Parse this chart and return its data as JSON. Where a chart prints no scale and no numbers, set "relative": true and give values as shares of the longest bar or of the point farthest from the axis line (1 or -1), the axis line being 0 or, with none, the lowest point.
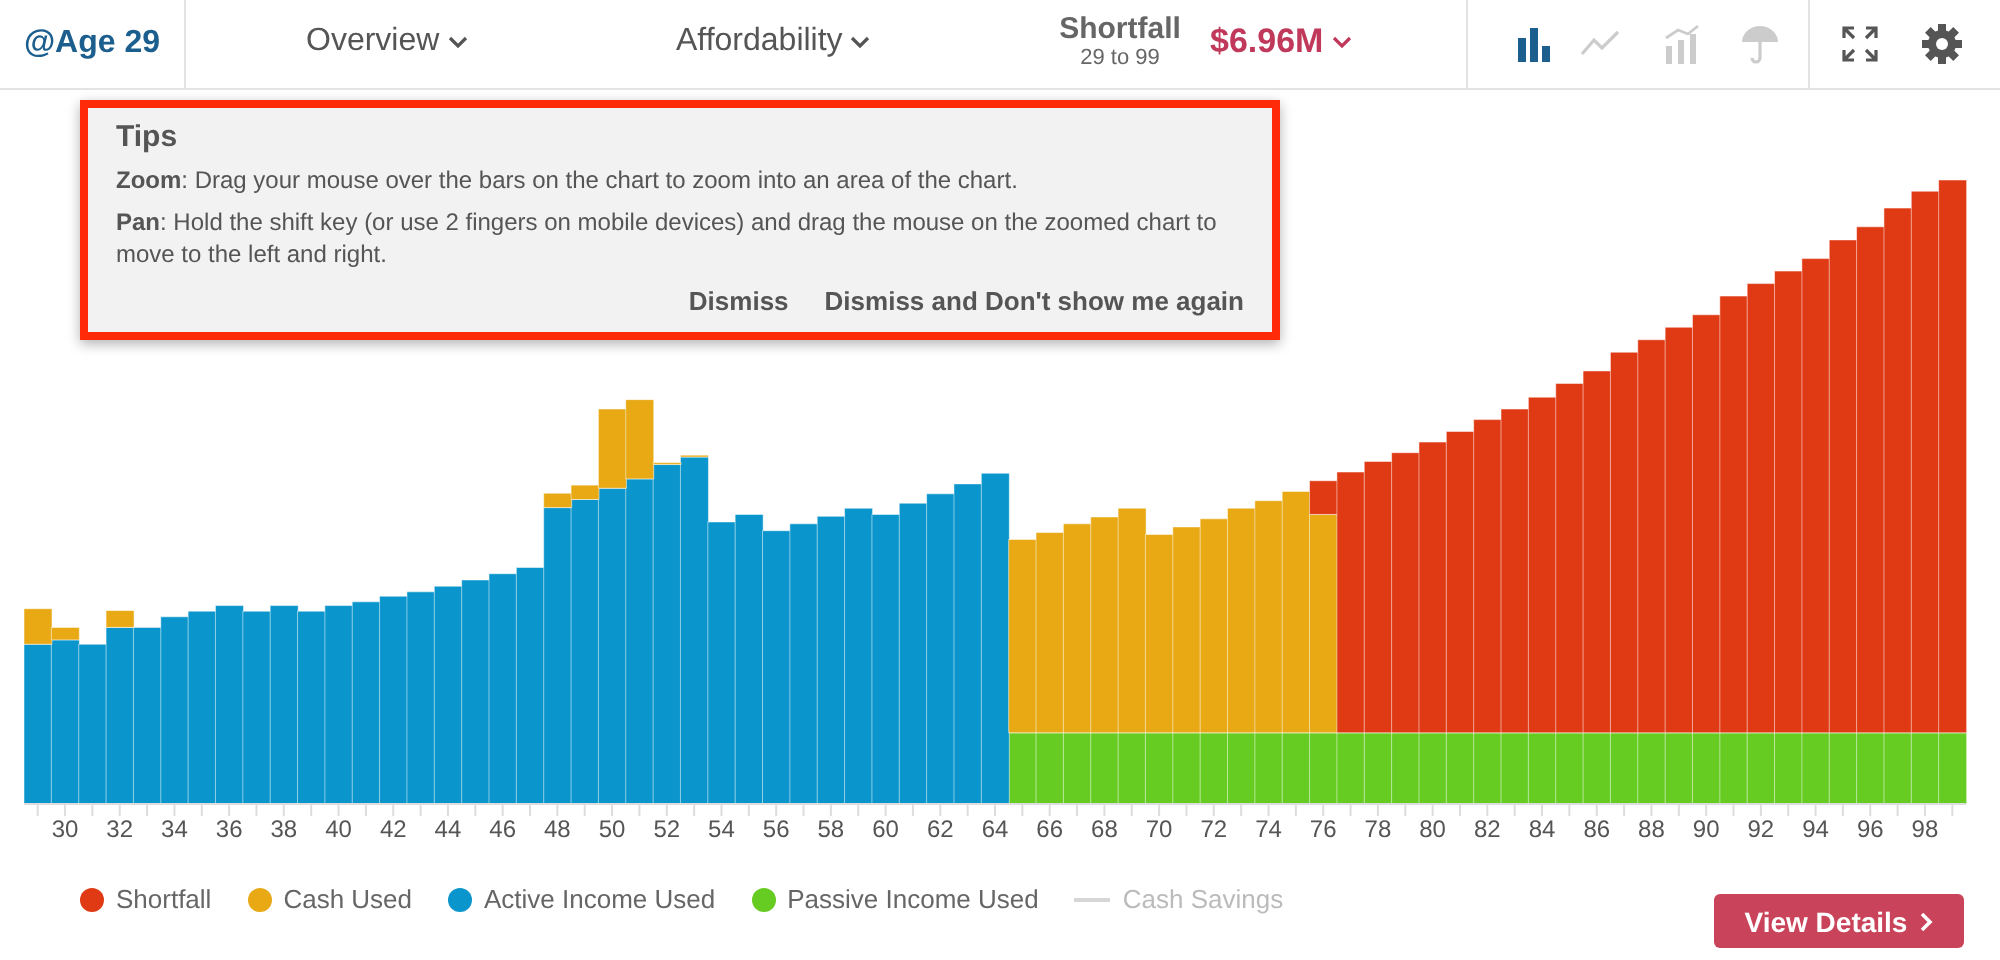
{
  "chart_data": {
    "type": "bar",
    "stacked": true,
    "relative": true,
    "legend": "bottom left",
    "categories": [
      null,
      "30",
      null,
      "32",
      null,
      "34",
      null,
      "36",
      null,
      "38",
      null,
      "40",
      null,
      "42",
      null,
      "44",
      null,
      "46",
      null,
      "48",
      null,
      "50",
      null,
      "52",
      null,
      "54",
      null,
      "56",
      null,
      "58",
      null,
      "60",
      null,
      "62",
      null,
      "64",
      null,
      "66",
      null,
      "68",
      null,
      "70",
      null,
      "72",
      null,
      "74",
      null,
      "76",
      null,
      "78",
      null,
      "80",
      null,
      "82",
      null,
      "84",
      null,
      "86",
      null,
      "88",
      null,
      "90",
      null,
      "92",
      null,
      "94",
      null,
      "96",
      null,
      "98",
      null
    ],
    "series": [
      {
        "name": "Passive Income Used",
        "color": "#66cc22",
        "values": [
          null,
          null,
          null,
          null,
          null,
          null,
          null,
          null,
          null,
          null,
          null,
          null,
          null,
          null,
          null,
          null,
          null,
          null,
          null,
          null,
          null,
          null,
          null,
          null,
          null,
          null,
          null,
          null,
          null,
          null,
          null,
          null,
          null,
          null,
          null,
          null,
          0.114,
          0.114,
          0.114,
          0.114,
          0.114,
          0.114,
          0.114,
          0.114,
          0.114,
          0.114,
          0.114,
          0.114,
          0.114,
          0.114,
          0.114,
          0.114,
          0.114,
          0.114,
          0.114,
          0.114,
          0.114,
          0.114,
          0.114,
          0.114,
          0.114,
          0.114,
          0.114,
          0.114,
          0.114,
          0.114,
          0.114,
          0.114,
          0.114,
          0.114,
          0.114
        ]
      },
      {
        "name": "Active Income Used",
        "color": "#0a96cc",
        "values": [
          0.256,
          0.263,
          0.256,
          0.283,
          0.283,
          0.3,
          0.309,
          0.318,
          0.309,
          0.318,
          0.309,
          0.318,
          0.324,
          0.333,
          0.34,
          0.349,
          0.359,
          0.369,
          0.379,
          0.475,
          0.488,
          0.506,
          0.521,
          0.544,
          0.556,
          0.452,
          0.464,
          0.438,
          0.449,
          0.461,
          0.474,
          0.464,
          0.482,
          0.497,
          0.513,
          0.53,
          null,
          null,
          null,
          null,
          null,
          null,
          null,
          null,
          null,
          null,
          null,
          null,
          null,
          null,
          null,
          null,
          null,
          null,
          null,
          null,
          null,
          null,
          null,
          null,
          null,
          null,
          null,
          null,
          null,
          null,
          null,
          null,
          null,
          null,
          null
        ]
      },
      {
        "name": "Cash Used",
        "color": "#e8a914",
        "values": [
          0.057,
          0.02,
          null,
          0.027,
          null,
          null,
          null,
          null,
          null,
          null,
          null,
          null,
          null,
          null,
          null,
          null,
          null,
          null,
          null,
          0.023,
          0.023,
          0.127,
          0.127,
          0.003,
          0.003,
          null,
          null,
          null,
          null,
          null,
          null,
          null,
          null,
          null,
          null,
          null,
          0.31,
          0.321,
          0.335,
          0.346,
          0.36,
          0.318,
          0.33,
          0.343,
          0.36,
          0.372,
          0.387,
          0.35,
          null,
          null,
          null,
          null,
          null,
          null,
          null,
          null,
          null,
          null,
          null,
          null,
          null,
          null,
          null,
          null,
          null,
          null,
          null,
          null,
          null,
          null,
          null
        ]
      },
      {
        "name": "Shortfall",
        "color": "#e03a14",
        "values": [
          null,
          null,
          null,
          null,
          null,
          null,
          null,
          null,
          null,
          null,
          null,
          null,
          null,
          null,
          null,
          null,
          null,
          null,
          null,
          null,
          null,
          null,
          null,
          null,
          null,
          null,
          null,
          null,
          null,
          null,
          null,
          null,
          null,
          null,
          null,
          null,
          null,
          null,
          null,
          null,
          null,
          null,
          null,
          null,
          null,
          null,
          null,
          0.054,
          0.418,
          0.435,
          0.449,
          0.466,
          0.483,
          0.502,
          0.519,
          0.538,
          0.56,
          0.58,
          0.61,
          0.63,
          0.65,
          0.67,
          0.7,
          0.72,
          0.74,
          0.76,
          0.79,
          0.811,
          0.841,
          0.868,
          0.886
        ]
      },
      {
        "name": "Cash Savings",
        "type": "line",
        "color": "#d6d6d6",
        "values": [
          null,
          null,
          null,
          null,
          null,
          null,
          null,
          null,
          null,
          null,
          null,
          null,
          null,
          null,
          null,
          null,
          null,
          null,
          null,
          null,
          null,
          null,
          null,
          null,
          null,
          null,
          null,
          null,
          null,
          null,
          null,
          null,
          null,
          null,
          null,
          null,
          null,
          null,
          null,
          null,
          null,
          null,
          null,
          null,
          null,
          null,
          null,
          null,
          null,
          null,
          null,
          null,
          null,
          null,
          null,
          null,
          null,
          null,
          null,
          null,
          null,
          null,
          null,
          null,
          null,
          null,
          null,
          null,
          null,
          null,
          null
        ]
      }
    ],
    "annotations": [
      "@Age 29",
      "Overview",
      "Affordability",
      "Shortfall",
      "29 to 99",
      "$6.96M",
      "Tips",
      "Zoom: Drag your mouse over the bars on the chart to zoom into an area of the chart.",
      "Pan: Hold the shift key (or use 2 fingers on mobile devices) and drag the mouse on the zoomed chart to move to the left and right.",
      "Dismiss",
      "Dismiss and Don't show me again",
      "View Details"
    ]
  }
}
